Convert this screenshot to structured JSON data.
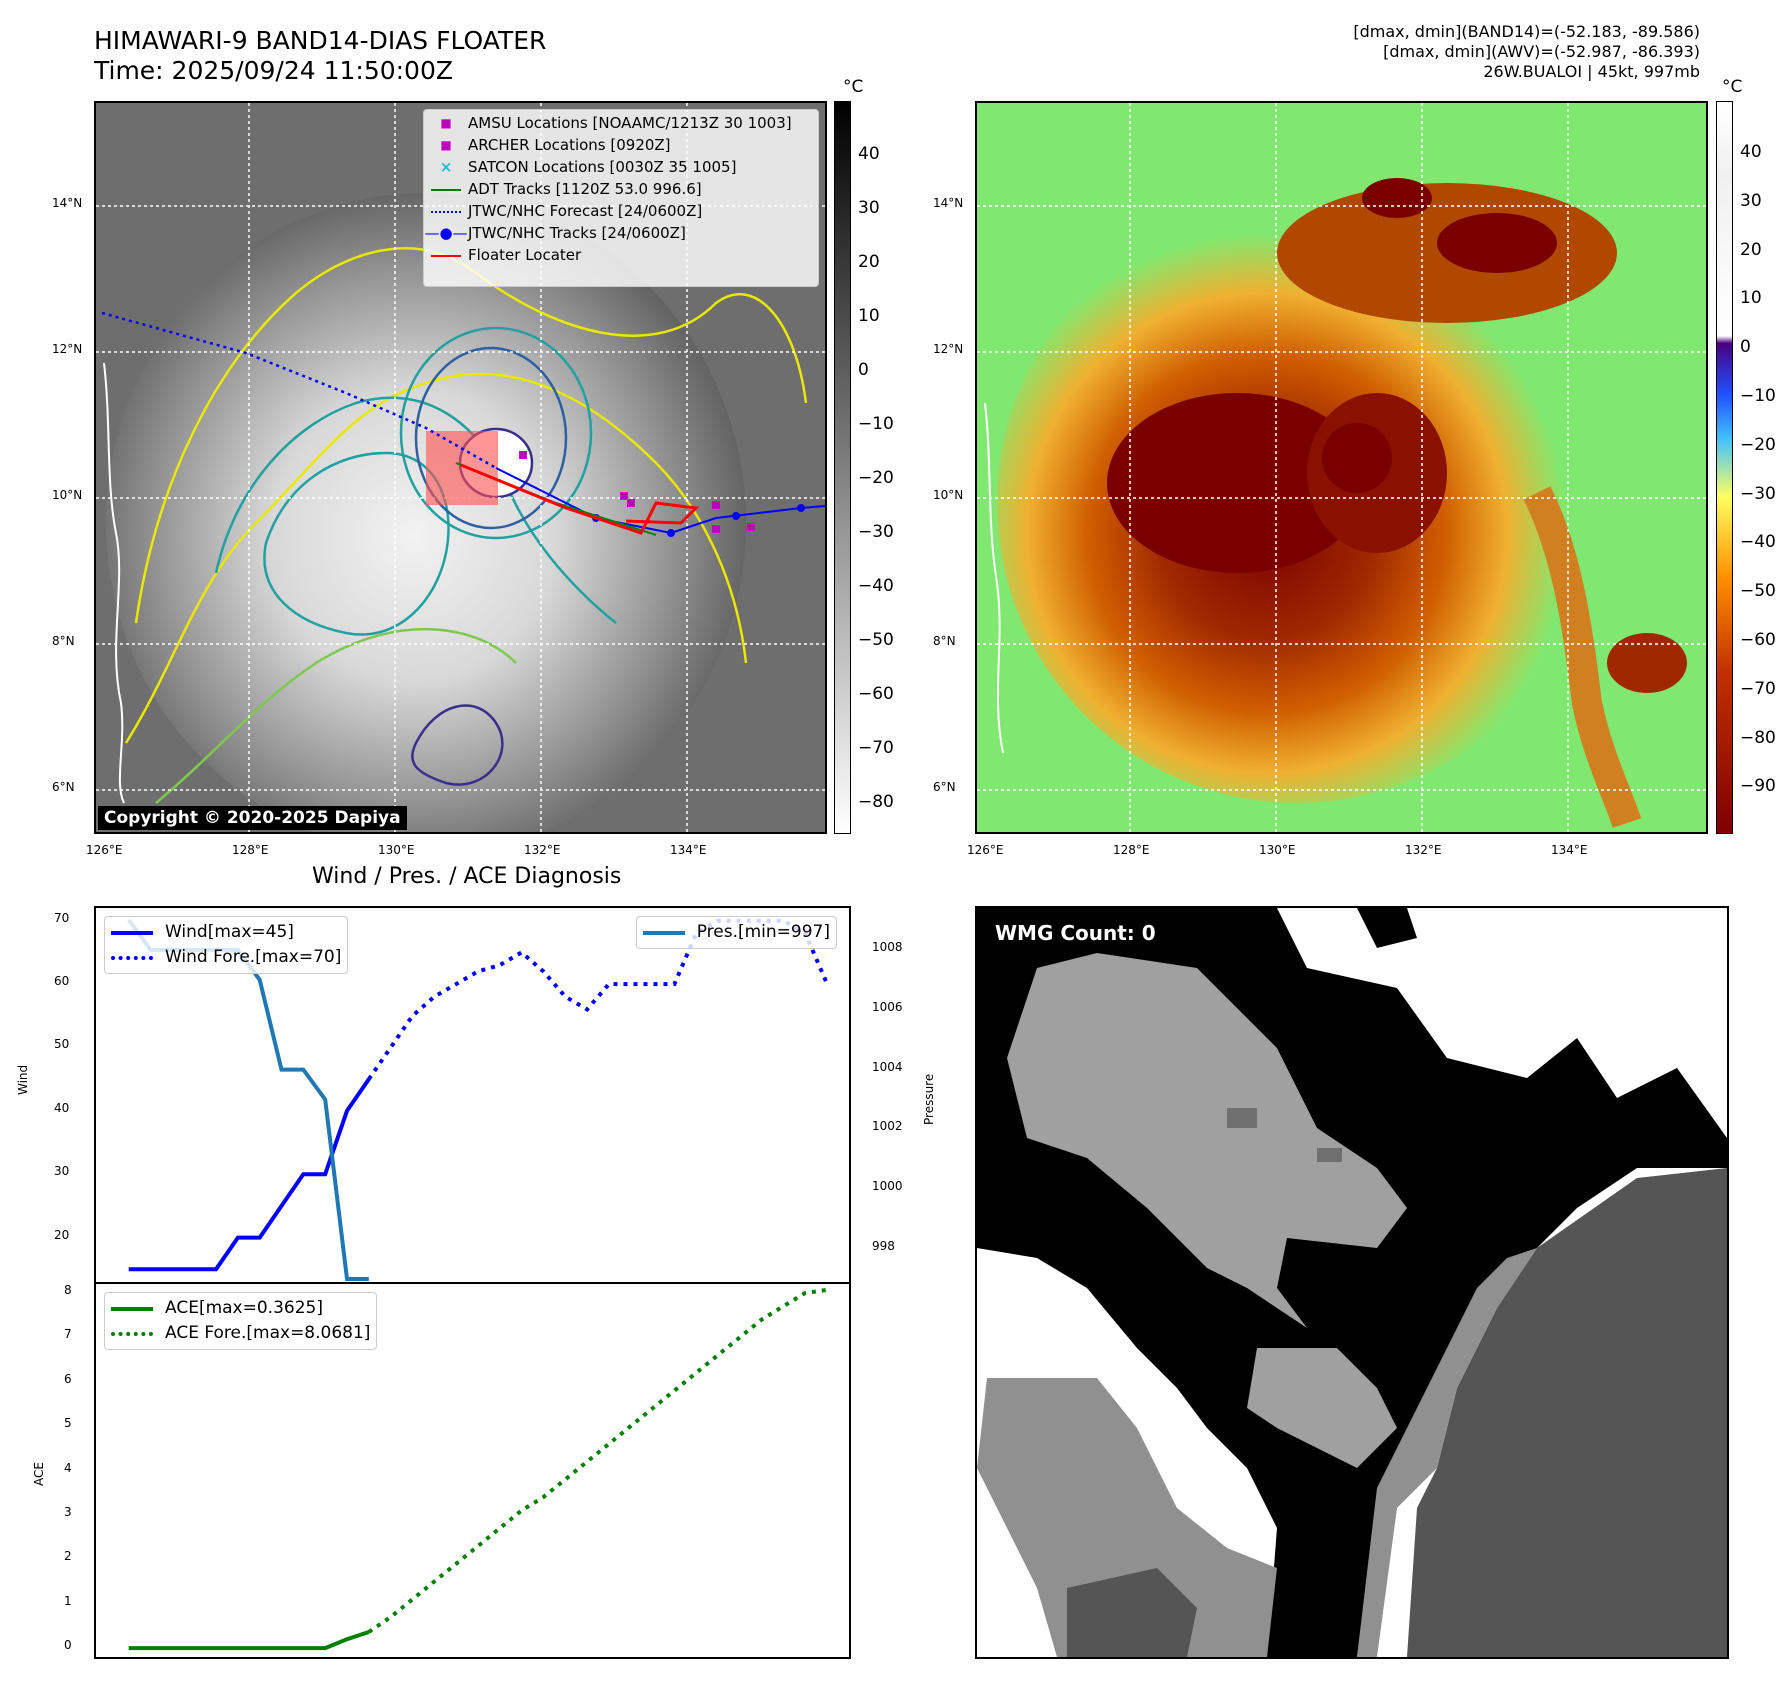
{
  "header": {
    "title_line1": "HIMAWARI-9 BAND14-DIAS FLOATER",
    "title_line2": "Time: 2025/09/24 11:50:00Z",
    "right_line1": "[dmax, dmin](BAND14)=(-52.183, -89.586)",
    "right_line2": "[dmax, dmin](AWV)=(-52.987, -86.393)",
    "right_line3": "26W.BUALOI | 45kt, 997mb"
  },
  "maps": {
    "lat_labels": [
      "14°N",
      "12°N",
      "10°N",
      "8°N",
      "6°N"
    ],
    "lon_labels": [
      "126°E",
      "128°E",
      "130°E",
      "132°E",
      "134°E"
    ],
    "copyright": "Copyright © 2020-2025 Dapiya",
    "colorbar_unit": "°C",
    "left_colorbar_ticks": [
      "40",
      "30",
      "20",
      "10",
      "0",
      "−10",
      "−20",
      "−30",
      "−40",
      "−50",
      "−60",
      "−70",
      "−80"
    ],
    "right_colorbar_ticks": [
      "40",
      "30",
      "20",
      "10",
      "0",
      "−10",
      "−20",
      "−30",
      "−40",
      "−50",
      "−60",
      "−70",
      "−80",
      "−90"
    ],
    "legend": [
      {
        "label": "AMSU Locations [NOAAMC/1213Z 30 1003]",
        "icon": "square-marker",
        "color": "#bf00bf"
      },
      {
        "label": "ARCHER Locations [0920Z]",
        "icon": "square-marker",
        "color": "#bf00bf"
      },
      {
        "label": "SATCON Locations [0030Z 35 1005]",
        "icon": "x-marker",
        "color": "#17becf"
      },
      {
        "label": "ADT Tracks [1120Z 53.0 996.6]",
        "icon": "solid-line",
        "color": "#008000"
      },
      {
        "label": "JTWC/NHC Forecast [24/0600Z]",
        "icon": "dotted-line",
        "color": "#0000ff"
      },
      {
        "label": "JTWC/NHC Tracks [24/0600Z]",
        "icon": "line-dot",
        "color": "#0000ff"
      },
      {
        "label": "Floater Locater",
        "icon": "solid-line",
        "color": "#ff0000"
      }
    ]
  },
  "diagnosis": {
    "title": "Wind / Pres. / ACE Diagnosis",
    "wind_ylabel": "Wind",
    "pres_ylabel": "Pressure",
    "ace_ylabel": "ACE",
    "wind_ticks": [
      "70",
      "60",
      "50",
      "40",
      "30",
      "20"
    ],
    "pres_ticks": [
      "1008",
      "1006",
      "1004",
      "1002",
      "1000",
      "998"
    ],
    "ace_ticks": [
      "8",
      "7",
      "6",
      "5",
      "4",
      "3",
      "2",
      "1",
      "0"
    ],
    "legend_wind": "Wind[max=45]",
    "legend_wind_fore": "Wind Fore.[max=70]",
    "legend_pres": "Pres.[min=997]",
    "legend_ace": "ACE[max=0.3625]",
    "legend_ace_fore": "ACE Fore.[max=8.0681]",
    "wmg_label": "WMG Count: 0"
  },
  "chart_data": [
    {
      "type": "line",
      "title": "Wind / Pres. / ACE Diagnosis",
      "ylabel": "Wind",
      "ylim": [
        13,
        72
      ],
      "y2label": "Pressure",
      "y2lim": [
        996.9,
        1009.4
      ],
      "series": [
        {
          "name": "Wind[max=45]",
          "axis": "left",
          "style": "solid",
          "color": "#0000ff",
          "x": [
            0,
            1,
            2,
            3,
            4,
            5,
            6,
            7,
            8,
            9,
            10,
            11
          ],
          "values": [
            15,
            15,
            15,
            15,
            15,
            20,
            20,
            25,
            30,
            30,
            40,
            45
          ]
        },
        {
          "name": "Wind Fore.[max=70]",
          "axis": "left",
          "style": "dotted",
          "color": "#0000ff",
          "x": [
            11,
            12,
            13,
            14,
            15,
            16,
            17,
            18,
            19,
            20,
            21,
            22,
            23,
            24,
            25,
            26,
            27,
            28,
            29,
            30,
            31,
            32
          ],
          "values": [
            45,
            50,
            55,
            58,
            60,
            62,
            63,
            65,
            62,
            58,
            56,
            60,
            60,
            60,
            60,
            68,
            70,
            70,
            70,
            70,
            68,
            60
          ]
        },
        {
          "name": "Pres.[min=997]",
          "axis": "right",
          "style": "solid",
          "color": "#1f77b4",
          "x": [
            0,
            1,
            2,
            3,
            4,
            5,
            6,
            7,
            8,
            9,
            10,
            11
          ],
          "values": [
            1009,
            1008,
            1008,
            1008,
            1008,
            1008,
            1007,
            1004,
            1004,
            1003,
            997,
            997
          ]
        }
      ]
    },
    {
      "type": "line",
      "ylabel": "ACE",
      "ylim": [
        -0.2,
        8.2
      ],
      "series": [
        {
          "name": "ACE[max=0.3625]",
          "style": "solid",
          "color": "#008000",
          "x": [
            0,
            1,
            2,
            3,
            4,
            5,
            6,
            7,
            8,
            9,
            10,
            11
          ],
          "values": [
            0,
            0,
            0,
            0,
            0,
            0,
            0,
            0,
            0,
            0,
            0.2,
            0.3625
          ]
        },
        {
          "name": "ACE Fore.[max=8.0681]",
          "style": "dotted",
          "color": "#008000",
          "x": [
            11,
            12,
            13,
            14,
            15,
            16,
            17,
            18,
            19,
            20,
            21,
            22,
            23,
            24,
            25,
            26,
            27,
            28,
            29,
            30,
            31,
            32
          ],
          "values": [
            0.3625,
            0.7,
            1.1,
            1.5,
            1.9,
            2.3,
            2.7,
            3.1,
            3.4,
            3.8,
            4.2,
            4.6,
            5.0,
            5.4,
            5.8,
            6.2,
            6.6,
            7.0,
            7.4,
            7.7,
            8.0,
            8.0681
          ]
        }
      ]
    }
  ]
}
